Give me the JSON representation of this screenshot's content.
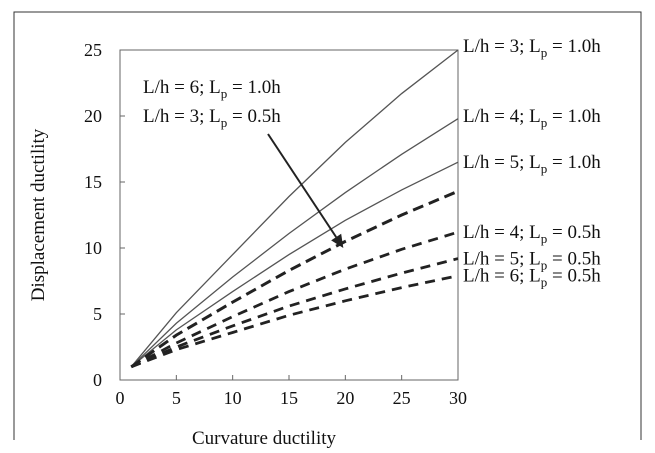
{
  "chart_data": {
    "type": "line",
    "title": "",
    "xlabel": "Curvature ductility",
    "ylabel": "Displacement ductility",
    "xlim": [
      0,
      30
    ],
    "ylim": [
      0,
      25
    ],
    "x_ticks": [
      "0",
      "5",
      "10",
      "15",
      "20",
      "25",
      "30"
    ],
    "y_ticks": [
      "0",
      "5",
      "10",
      "15",
      "20",
      "25"
    ],
    "grid": false,
    "legend": "right",
    "x": [
      1,
      5,
      10,
      15,
      20,
      25,
      30
    ],
    "series": [
      {
        "name": "L/h = 3; L_p = 1.0h",
        "style": "solid",
        "values": [
          1.0,
          5.1,
          9.5,
          13.9,
          18.0,
          21.7,
          25.0
        ]
      },
      {
        "name": "L/h = 4; L_p = 1.0h",
        "style": "solid",
        "values": [
          1.0,
          4.3,
          7.8,
          11.1,
          14.2,
          17.1,
          19.8
        ]
      },
      {
        "name": "L/h = 5; L_p = 1.0h",
        "style": "solid",
        "values": [
          1.0,
          3.8,
          6.7,
          9.5,
          12.1,
          14.4,
          16.5
        ]
      },
      {
        "name": "L/h = 6; L_p = 1.0h / L/h = 3; L_p = 0.5h",
        "style": "dashed-bold",
        "values": [
          1.0,
          3.4,
          5.9,
          8.3,
          10.5,
          12.5,
          14.3
        ]
      },
      {
        "name": "L/h = 4; L_p = 0.5h",
        "style": "dashed",
        "values": [
          1.0,
          2.8,
          4.8,
          6.7,
          8.4,
          9.9,
          11.2
        ]
      },
      {
        "name": "L/h = 5; L_p = 0.5h",
        "style": "dashed",
        "values": [
          1.0,
          2.5,
          4.1,
          5.6,
          6.9,
          8.1,
          9.2
        ]
      },
      {
        "name": "L/h = 6; L_p = 0.5h",
        "style": "dashed",
        "values": [
          1.0,
          2.3,
          3.6,
          4.9,
          6.0,
          7.0,
          7.9
        ]
      }
    ],
    "annotations": {
      "left": [
        {
          "lh": "L/h = 6; L",
          "sub": "p",
          "tail": " = 1.0h"
        },
        {
          "lh": "L/h = 3; L",
          "sub": "p",
          "tail": " = 0.5h"
        }
      ],
      "right": [
        {
          "lh": "L/h = 3; L",
          "sub": "p",
          "tail": " = 1.0h",
          "y": 25
        },
        {
          "lh": "L/h = 4; L",
          "sub": "p",
          "tail": " = 1.0h",
          "y": 20
        },
        {
          "lh": "L/h = 5; L",
          "sub": "p",
          "tail": " = 1.0h",
          "y": 16.5
        },
        {
          "lh": "L/h = 4; L",
          "sub": "p",
          "tail": " = 0.5h",
          "y": 11.2
        },
        {
          "lh": "L/h = 5; L",
          "sub": "p",
          "tail": " = 0.5h",
          "y": 9.2
        },
        {
          "lh": "L/h = 6; L",
          "sub": "p",
          "tail": " = 0.5h",
          "y": 7.9
        }
      ],
      "arrow_target": [
        20,
        9.7
      ]
    },
    "colors": {
      "line": "#555555",
      "dash": "#222222"
    }
  }
}
